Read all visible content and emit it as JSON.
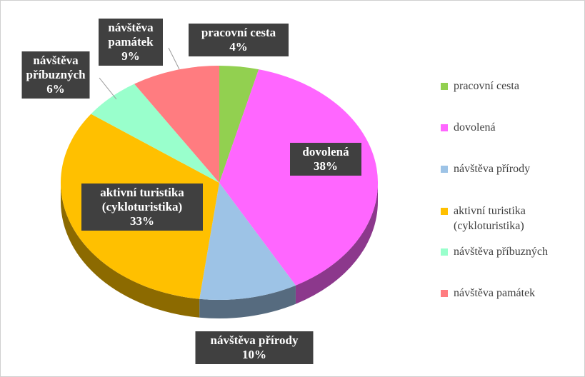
{
  "chart_data": {
    "type": "pie",
    "categories": [
      "pracovní cesta",
      "dovolená",
      "návštěva přírody",
      "aktivní turistika (cykloturistika)",
      "návštěva příbuzných",
      "návštěva památek"
    ],
    "values": [
      4,
      38,
      10,
      33,
      6,
      9
    ],
    "value_labels": [
      "4%",
      "38%",
      "10%",
      "33%",
      "6%",
      "9%"
    ],
    "colors": [
      "#92d050",
      "#ff66ff",
      "#9dc3e6",
      "#ffc000",
      "#99ffcc",
      "#ff7c80"
    ],
    "legend": "right"
  }
}
